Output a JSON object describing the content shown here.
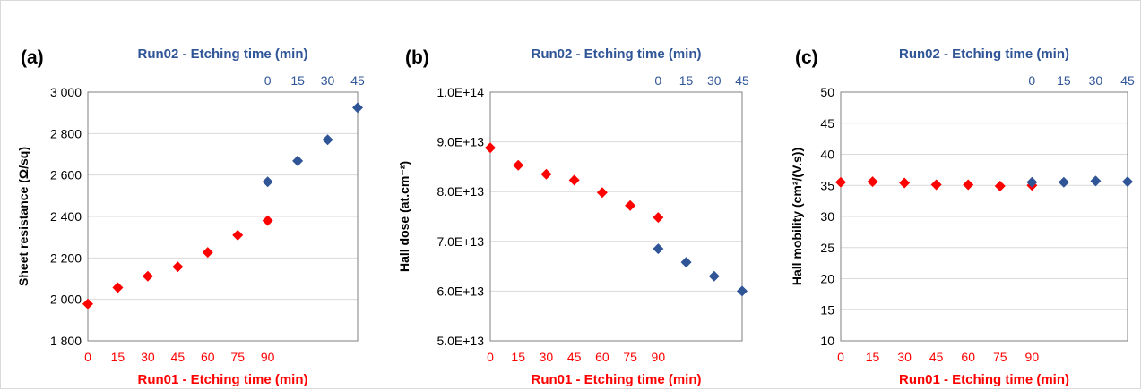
{
  "colors": {
    "run01": "#ff0000",
    "run02": "#2f5597",
    "grid": "#d9d9d9",
    "axis": "#7f7f7f"
  },
  "chart_data": [
    {
      "type": "scatter",
      "panel_label": "(a)",
      "top_axis_title": "Run02 - Etching time (min)",
      "bottom_axis_title": "Run01 - Etching time (min)",
      "ylabel": "Sheet resistance (Ω/sq)",
      "ylim": [
        1800,
        3000
      ],
      "yticks": [
        "1 800",
        "2 000",
        "2 200",
        "2 400",
        "2 600",
        "2 800",
        "3 000"
      ],
      "xlim": [
        0,
        135
      ],
      "bottom_ticks": [
        0,
        15,
        30,
        45,
        60,
        75,
        90
      ],
      "top_ticks": [
        0,
        15,
        30,
        45
      ],
      "top_offset": 90,
      "series": [
        {
          "name": "Run01",
          "x": [
            0,
            15,
            30,
            45,
            60,
            75,
            90
          ],
          "y": [
            1978,
            2057,
            2112,
            2157,
            2227,
            2310,
            2380
          ]
        },
        {
          "name": "Run02",
          "x": [
            0,
            15,
            30,
            45
          ],
          "y": [
            2567,
            2668,
            2770,
            2925
          ]
        }
      ]
    },
    {
      "type": "scatter",
      "panel_label": "(b)",
      "top_axis_title": "Run02 - Etching time (min)",
      "bottom_axis_title": "Run01 - Etching time (min)",
      "ylabel": "Hall dose (at.cm⁻²)",
      "ylim": [
        50000000000000.0,
        100000000000000.0
      ],
      "yticks": [
        "5.0E+13",
        "6.0E+13",
        "7.0E+13",
        "8.0E+13",
        "9.0E+13",
        "1.0E+14"
      ],
      "xlim": [
        0,
        135
      ],
      "bottom_ticks": [
        0,
        15,
        30,
        45,
        60,
        75,
        90
      ],
      "top_ticks": [
        0,
        15,
        30,
        45
      ],
      "top_offset": 90,
      "series": [
        {
          "name": "Run01",
          "x": [
            0,
            15,
            30,
            45,
            60,
            75,
            90
          ],
          "y": [
            88800000000000.0,
            85300000000000.0,
            83500000000000.0,
            82300000000000.0,
            79800000000000.0,
            77200000000000.0,
            74800000000000.0
          ]
        },
        {
          "name": "Run02",
          "x": [
            0,
            15,
            30,
            45
          ],
          "y": [
            68500000000000.0,
            65800000000000.0,
            63000000000000.0,
            60000000000000.0
          ]
        }
      ]
    },
    {
      "type": "scatter",
      "panel_label": "(c)",
      "top_axis_title": "Run02 - Etching time (min)",
      "bottom_axis_title": "Run01 - Etching time (min)",
      "ylabel": "Hall mobility (cm²/(V.s))",
      "ylim": [
        10,
        50
      ],
      "yticks": [
        "10",
        "15",
        "20",
        "25",
        "30",
        "35",
        "40",
        "45",
        "50"
      ],
      "xlim": [
        0,
        135
      ],
      "bottom_ticks": [
        0,
        15,
        30,
        45,
        60,
        75,
        90
      ],
      "top_ticks": [
        0,
        15,
        30,
        45
      ],
      "top_offset": 90,
      "series": [
        {
          "name": "Run01",
          "x": [
            0,
            15,
            30,
            45,
            60,
            75,
            90
          ],
          "y": [
            35.5,
            35.6,
            35.4,
            35.1,
            35.1,
            34.9,
            35.0
          ]
        },
        {
          "name": "Run02",
          "x": [
            0,
            15,
            30,
            45
          ],
          "y": [
            35.5,
            35.5,
            35.7,
            35.6
          ]
        }
      ]
    }
  ]
}
